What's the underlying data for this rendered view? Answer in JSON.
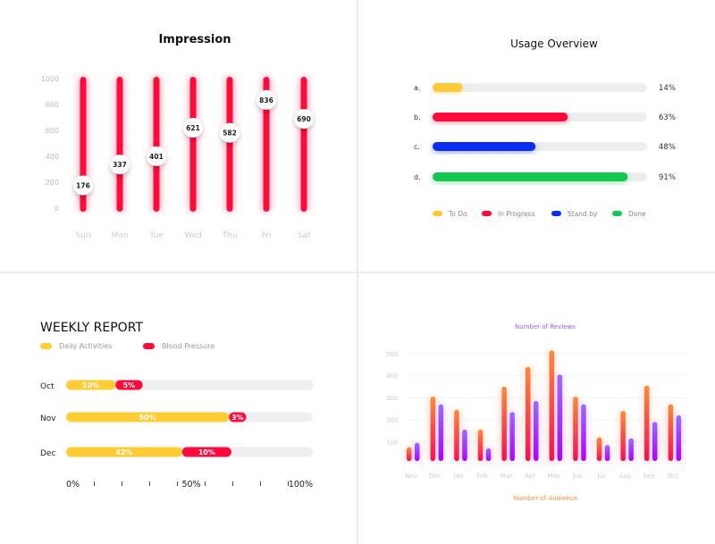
{
  "chart_data": [
    {
      "type": "bar",
      "title": "Impression",
      "categories": [
        "Sun",
        "Mon",
        "Tue",
        "Wed",
        "Thu",
        "Fri",
        "Sat"
      ],
      "values": [
        176,
        337,
        401,
        621,
        582,
        836,
        690
      ],
      "yticks": [
        0,
        200,
        400,
        600,
        800,
        1000
      ],
      "ylim": [
        0,
        1000
      ],
      "color": "#ff0a3a"
    },
    {
      "type": "bar",
      "orientation": "horizontal",
      "title": "Usage Overview",
      "categories": [
        "a.",
        "b.",
        "c.",
        "d."
      ],
      "values": [
        14,
        63,
        48,
        91
      ],
      "labels": [
        "14%",
        "63%",
        "48%",
        "91%"
      ],
      "colors": [
        "#ffc93c",
        "#ff0a3a",
        "#0a2ef0",
        "#12c84e"
      ],
      "legend": [
        "To Do",
        "In Progress",
        "Stand by",
        "Done"
      ],
      "xlim": [
        0,
        100
      ]
    },
    {
      "type": "bar",
      "orientation": "horizontal",
      "stacked": true,
      "title": "WEEKLY REPORT",
      "categories": [
        "Oct",
        "Nov",
        "Dec"
      ],
      "series": [
        {
          "name": "Daily Activities",
          "color": "#ffcc33",
          "labels": [
            "10%",
            "50%",
            "42%"
          ],
          "fill": [
            0.2,
            0.66,
            0.47
          ]
        },
        {
          "name": "Blood Pressure",
          "color": "#ff0a3a",
          "labels": [
            "5%",
            "3%",
            "10%"
          ],
          "fill": [
            0.11,
            0.07,
            0.2
          ]
        }
      ],
      "xticks": [
        "0%",
        "50%",
        "100%"
      ]
    },
    {
      "type": "bar",
      "title": "Number of Reviews",
      "xlabel": "Number of Audience",
      "categories": [
        "Nov",
        "Dec",
        "Jan",
        "Feb",
        "Mar",
        "Apr",
        "May",
        "Jun",
        "Jul",
        "Aug",
        "Sep",
        "Oct"
      ],
      "series": [
        {
          "values": [
            75,
            305,
            245,
            155,
            350,
            440,
            515,
            305,
            120,
            240,
            355,
            270
          ],
          "color": "#ff7a3a"
        },
        {
          "values": [
            95,
            270,
            155,
            70,
            235,
            285,
            405,
            270,
            85,
            115,
            190,
            220
          ],
          "color": "#9a5cff"
        }
      ],
      "yticks": [
        100,
        200,
        300,
        400,
        500
      ],
      "ylim": [
        0,
        500
      ],
      "grid": true
    }
  ]
}
